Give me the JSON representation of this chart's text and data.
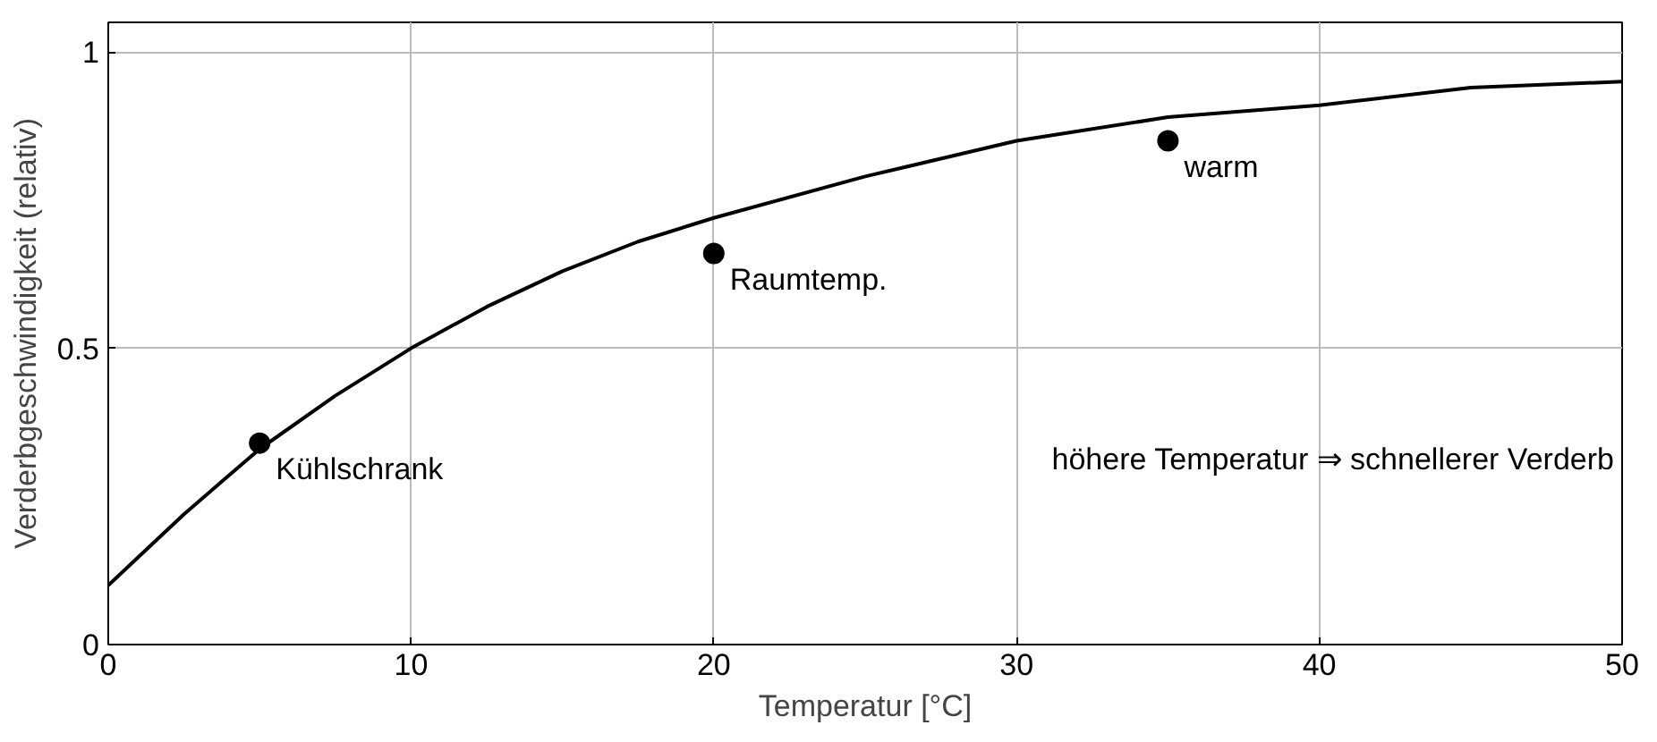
{
  "chart_data": {
    "type": "line",
    "xlabel": "Temperatur [°C]",
    "ylabel": "Verderbgeschwindigkeit (relativ)",
    "xlim": [
      0,
      50
    ],
    "ylim": [
      0,
      1.05
    ],
    "xticks": [
      0,
      10,
      20,
      30,
      40,
      50
    ],
    "yticks": [
      0,
      0.5,
      1
    ],
    "grid": true,
    "line_style": "solid",
    "series": [
      {
        "color": "#000000",
        "x": [
          0,
          2.5,
          5,
          7.5,
          10,
          12.5,
          15,
          17.5,
          20,
          25,
          30,
          35,
          40,
          45,
          50
        ],
        "values": [
          0.1,
          0.22,
          0.33,
          0.42,
          0.5,
          0.57,
          0.63,
          0.68,
          0.72,
          0.79,
          0.85,
          0.89,
          0.91,
          0.94,
          0.95
        ]
      },
      {
        "type": "scatter",
        "color": "#000000",
        "marker": "circle",
        "x": [
          5,
          20,
          35
        ],
        "values": [
          0.34,
          0.66,
          0.85
        ]
      }
    ],
    "annotations": [
      {
        "text": "Kühlschrank",
        "x": 5,
        "y": 0.34
      },
      {
        "text": "Raumtemp.",
        "x": 20,
        "y": 0.66
      },
      {
        "text": "warm",
        "x": 35,
        "y": 0.85
      },
      "höhere Temperatur ⇒ schnellerer Verderb"
    ]
  }
}
